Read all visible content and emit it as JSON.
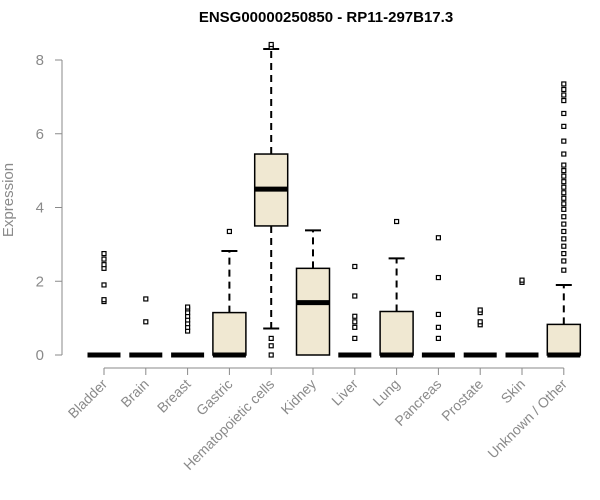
{
  "chart_data": {
    "type": "box",
    "title": "ENSG00000250850 - RP11-297B17.3",
    "xlabel": "",
    "ylabel": "Expression",
    "ylim": [
      0,
      8.3
    ],
    "yticks": [
      0,
      2,
      4,
      6,
      8
    ],
    "grid": false,
    "legend": "none",
    "box_fill": "#f0e8d2",
    "stroke_color": "#000000",
    "axis_color": "#8a8a8a",
    "categories": [
      "Bladder",
      "Brain",
      "Breast",
      "Gastric",
      "Hematopoietic cells",
      "Kidney",
      "Liver",
      "Lung",
      "Pancreas",
      "Prostate",
      "Skin",
      "Unknown / Other"
    ],
    "boxes": [
      {
        "q1": 0,
        "median": 0,
        "q3": 0,
        "whisker_low": 0,
        "whisker_high": 0,
        "outliers": [
          1.45,
          1.5,
          1.9,
          2.35,
          2.45,
          2.6,
          2.75
        ]
      },
      {
        "q1": 0,
        "median": 0,
        "q3": 0,
        "whisker_low": 0,
        "whisker_high": 0,
        "outliers": [
          0.9,
          1.52
        ]
      },
      {
        "q1": 0,
        "median": 0,
        "q3": 0,
        "whisker_low": 0,
        "whisker_high": 0,
        "outliers": [
          0.65,
          0.75,
          0.85,
          0.95,
          1.05,
          1.15,
          1.25,
          1.3
        ]
      },
      {
        "q1": 0,
        "median": 0,
        "q3": 1.15,
        "whisker_low": 0,
        "whisker_high": 2.82,
        "outliers": [
          3.35
        ]
      },
      {
        "q1": 3.5,
        "median": 4.5,
        "q3": 5.45,
        "whisker_low": 0.72,
        "whisker_high": 8.3,
        "outliers": [
          0,
          0.25,
          0.45,
          8.35,
          8.42
        ]
      },
      {
        "q1": 0,
        "median": 1.42,
        "q3": 2.35,
        "whisker_low": 0,
        "whisker_high": 3.38,
        "outliers": []
      },
      {
        "q1": 0,
        "median": 0,
        "q3": 0,
        "whisker_low": 0,
        "whisker_high": 0,
        "outliers": [
          0.45,
          0.75,
          0.9,
          1.05,
          1.6,
          2.4
        ]
      },
      {
        "q1": 0,
        "median": 0,
        "q3": 1.18,
        "whisker_low": 0,
        "whisker_high": 2.62,
        "outliers": [
          3.62
        ]
      },
      {
        "q1": 0,
        "median": 0,
        "q3": 0,
        "whisker_low": 0,
        "whisker_high": 0,
        "outliers": [
          0.45,
          0.75,
          1.1,
          2.1,
          3.18
        ]
      },
      {
        "q1": 0,
        "median": 0,
        "q3": 0,
        "whisker_low": 0,
        "whisker_high": 0,
        "outliers": [
          0.82,
          0.9,
          1.15,
          1.22
        ]
      },
      {
        "q1": 0,
        "median": 0,
        "q3": 0,
        "whisker_low": 0,
        "whisker_high": 0,
        "outliers": [
          1.97,
          2.03
        ]
      },
      {
        "q1": 0,
        "median": 0,
        "q3": 0.83,
        "whisker_low": 0,
        "whisker_high": 1.9,
        "outliers": [
          2.3,
          2.55,
          2.75,
          2.95,
          3.15,
          3.35,
          3.55,
          3.75,
          3.95,
          4.1,
          4.25,
          4.4,
          4.55,
          4.7,
          4.85,
          5.0,
          5.15,
          5.45,
          5.8,
          6.2,
          6.55,
          6.9,
          7.05,
          7.2,
          7.35
        ]
      }
    ]
  }
}
